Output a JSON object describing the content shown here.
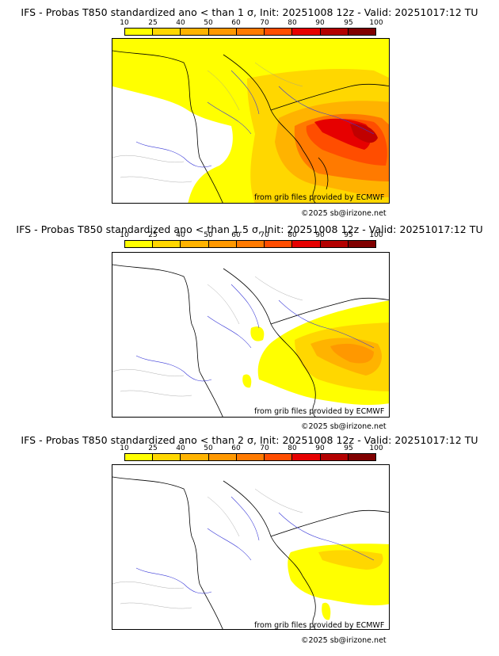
{
  "panels": [
    {
      "title": "IFS - Probas T850  standardized ano < than 1 σ, Init: 20251008 12z - Valid: 20251017:12 TU"
    },
    {
      "title": "IFS - Probas T850  standardized ano < than 1.5 σ, Init: 20251008 12z - Valid: 20251017:12 TU"
    },
    {
      "title": "IFS - Probas T850  standardized ano < than 2 σ, Init: 20251008 12z - Valid: 20251017:12 TU"
    }
  ],
  "colorbar": {
    "ticks": [
      "10",
      "25",
      "40",
      "50",
      "60",
      "70",
      "80",
      "90",
      "95",
      "100"
    ],
    "colors": [
      "#ffff00",
      "#ffd700",
      "#ffb300",
      "#ff9800",
      "#ff7a00",
      "#ff4d00",
      "#e60000",
      "#b30000",
      "#800000"
    ]
  },
  "credits": {
    "source": "from grib files provided by ECMWF",
    "copyright": "©2025 sb@irizone.net"
  },
  "map_data": {
    "region": "Western Europe (France, Alps, N. Italy)",
    "field": "Probability of T850 standardized anomaly below threshold",
    "units": "%"
  }
}
